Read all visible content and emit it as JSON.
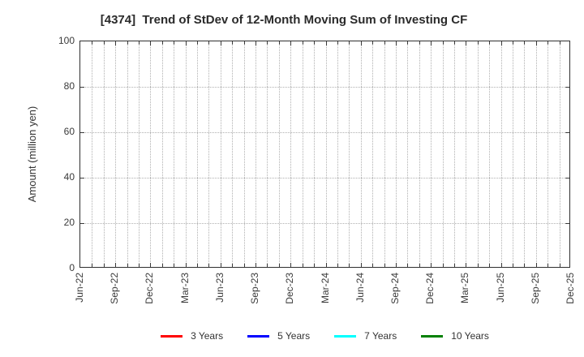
{
  "title": "[4374]  Trend of StDev of 12-Month Moving Sum of Investing CF",
  "y_axis": {
    "label": "Amount (million yen)",
    "ticks": [
      0,
      20,
      40,
      60,
      80,
      100
    ],
    "range": [
      0,
      100
    ]
  },
  "x_axis": {
    "tick_labels": [
      "Jun-22",
      "Sep-22",
      "Dec-22",
      "Mar-23",
      "Jun-23",
      "Sep-23",
      "Dec-23",
      "Mar-24",
      "Jun-24",
      "Sep-24",
      "Dec-24",
      "Mar-25",
      "Jun-25",
      "Sep-25",
      "Dec-25"
    ],
    "minor_gridlines_per_label": 3
  },
  "legend": {
    "items": [
      {
        "label": "3 Years",
        "color": "#ff0000"
      },
      {
        "label": "5 Years",
        "color": "#0000ff"
      },
      {
        "label": "7 Years",
        "color": "#00ffff"
      },
      {
        "label": "10 Years",
        "color": "#008000"
      }
    ]
  },
  "chart_data": {
    "type": "line",
    "title": "[4374]  Trend of StDev of 12-Month Moving Sum of Investing CF",
    "xlabel": "",
    "ylabel": "Amount (million yen)",
    "ylim": [
      0,
      100
    ],
    "yticks": [
      0,
      20,
      40,
      60,
      80,
      100
    ],
    "categories": [
      "Jun-22",
      "Sep-22",
      "Dec-22",
      "Mar-23",
      "Jun-23",
      "Sep-23",
      "Dec-23",
      "Mar-24",
      "Jun-24",
      "Sep-24",
      "Dec-24",
      "Mar-25",
      "Jun-25",
      "Sep-25",
      "Dec-25"
    ],
    "grid": "dotted, monthly vertical lines and horizontal lines at each y tick",
    "legend_position": "bottom-center",
    "series": [
      {
        "name": "3 Years",
        "color": "#ff0000",
        "values": []
      },
      {
        "name": "5 Years",
        "color": "#0000ff",
        "values": []
      },
      {
        "name": "7 Years",
        "color": "#00ffff",
        "values": []
      },
      {
        "name": "10 Years",
        "color": "#008000",
        "values": []
      }
    ],
    "plotted_data_visible": false
  }
}
